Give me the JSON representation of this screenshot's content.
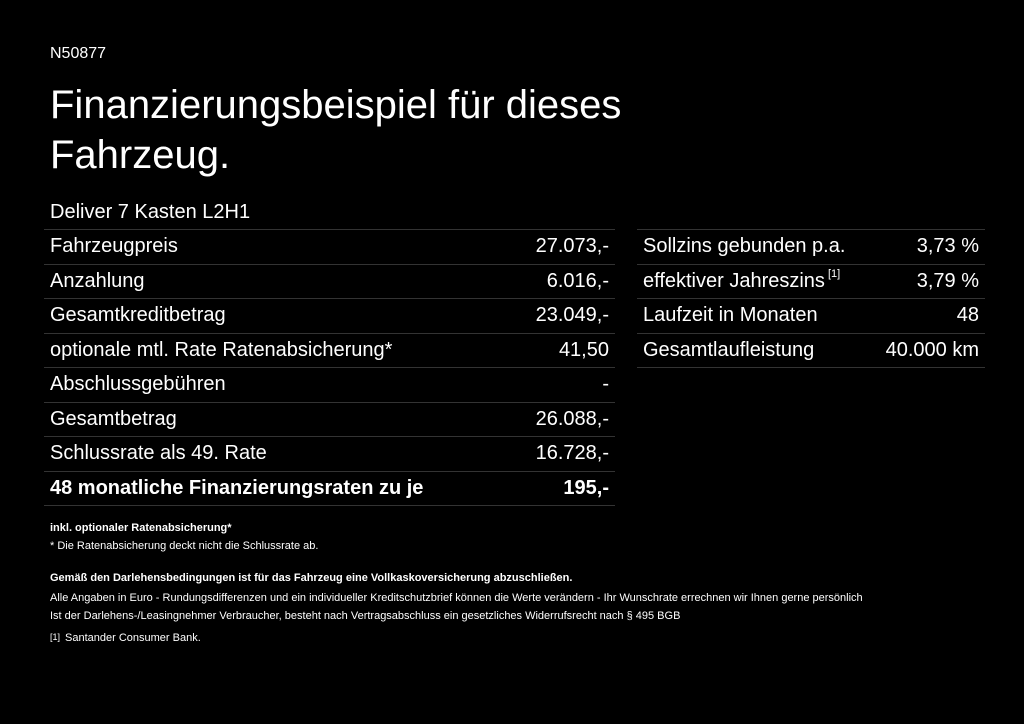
{
  "code": "N50877",
  "title": "Finanzierungsbeispiel für dieses Fahrzeug.",
  "model": "Deliver 7 Kasten L2H1",
  "left_table": {
    "rows": [
      [
        "Fahrzeugpreis",
        "27.073,-"
      ],
      [
        "Anzahlung",
        "6.016,-"
      ],
      [
        "Gesamtkreditbetrag",
        "23.049,-"
      ],
      [
        "optionale mtl. Rate Ratenabsicherung*",
        "41,50"
      ],
      [
        "Abschlussgebühren",
        "-"
      ],
      [
        "Gesamtbetrag",
        "26.088,-"
      ],
      [
        "Schlussrate als 49. Rate",
        "16.728,-"
      ],
      [
        "48 monatliche Finanzierungsraten zu je",
        "195,-"
      ]
    ]
  },
  "right_table": {
    "rows": [
      [
        "Sollzins gebunden p.a.",
        "3,73 %"
      ],
      [
        "effektiver Jahreszins",
        "3,79 %"
      ],
      [
        "Laufzeit in Monaten",
        "48"
      ],
      [
        "Gesamtlaufleistung",
        "40.000 km"
      ]
    ],
    "note_ref": "[1]"
  },
  "notes": {
    "insurance_heading": "inkl. optionaler Ratenabsicherung*",
    "insurance_note": "* Die Ratenabsicherung deckt nicht die Schlussrate ab.",
    "coverage_heading": "Gemäß den Darlehensbedingungen ist für das Fahrzeug eine Vollkaskoversicherung abzuschließen.",
    "disclaimer_1": "Alle Angaben in Euro - Rundungsdifferenzen und ein individueller Kreditschutzbrief können die Werte verändern - Ihr Wunschrate errechnen wir Ihnen gerne persönlich",
    "disclaimer_2": "Ist der Darlehens-/Leasingnehmer Verbraucher, besteht nach Vertragsabschluss ein gesetzliches Widerrufsrecht nach § 495 BGB",
    "footnote_ref": "[1]",
    "footnote": "Santander Consumer Bank."
  }
}
